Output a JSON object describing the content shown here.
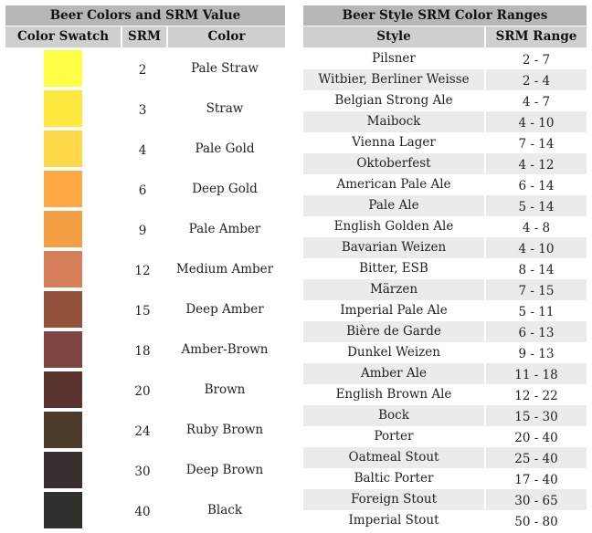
{
  "left": {
    "title": "Beer Colors and SRM Value",
    "headers": {
      "swatch": "Color Swatch",
      "srm": "SRM",
      "color": "Color"
    },
    "rows": [
      {
        "srm": "2",
        "color": "Pale Straw",
        "hex": "#ffff45"
      },
      {
        "srm": "3",
        "color": "Straw",
        "hex": "#ffe93e"
      },
      {
        "srm": "4",
        "color": "Pale Gold",
        "hex": "#fed849"
      },
      {
        "srm": "6",
        "color": "Deep Gold",
        "hex": "#ffa846"
      },
      {
        "srm": "9",
        "color": "Pale Amber",
        "hex": "#f49f44"
      },
      {
        "srm": "12",
        "color": "Medium Amber",
        "hex": "#d77f59"
      },
      {
        "srm": "15",
        "color": "Deep Amber",
        "hex": "#94523a"
      },
      {
        "srm": "18",
        "color": "Amber-Brown",
        "hex": "#804541"
      },
      {
        "srm": "20",
        "color": "Brown",
        "hex": "#5b342f"
      },
      {
        "srm": "24",
        "color": "Ruby Brown",
        "hex": "#4c3b2b"
      },
      {
        "srm": "30",
        "color": "Deep Brown",
        "hex": "#38302e"
      },
      {
        "srm": "40",
        "color": "Black",
        "hex": "#31302c"
      }
    ]
  },
  "right": {
    "title": "Beer Style SRM Color Ranges",
    "headers": {
      "style": "Style",
      "range": "SRM Range"
    },
    "rows": [
      {
        "style": "Pilsner",
        "range": "2 - 7"
      },
      {
        "style": "Witbier, Berliner Weisse",
        "range": "2 - 4"
      },
      {
        "style": "Belgian Strong Ale",
        "range": "4 - 7"
      },
      {
        "style": "Maibock",
        "range": "4 - 10"
      },
      {
        "style": "Vienna Lager",
        "range": "7 - 14"
      },
      {
        "style": "Oktoberfest",
        "range": "4 - 12"
      },
      {
        "style": "American Pale Ale",
        "range": "6 - 14"
      },
      {
        "style": "Pale Ale",
        "range": "5 - 14"
      },
      {
        "style": "English Golden Ale",
        "range": "4 - 8"
      },
      {
        "style": "Bavarian Weizen",
        "range": "4 - 10"
      },
      {
        "style": "Bitter, ESB",
        "range": "8 - 14"
      },
      {
        "style": "Märzen",
        "range": "7 - 15"
      },
      {
        "style": "Imperial Pale Ale",
        "range": "5 - 11"
      },
      {
        "style": "Bière de Garde",
        "range": "6 - 13"
      },
      {
        "style": "Dunkel Weizen",
        "range": "9 - 13"
      },
      {
        "style": "Amber Ale",
        "range": "11 - 18"
      },
      {
        "style": "English Brown Ale",
        "range": "12 - 22"
      },
      {
        "style": "Bock",
        "range": "15 - 30"
      },
      {
        "style": "Porter",
        "range": "20 - 40"
      },
      {
        "style": "Oatmeal Stout",
        "range": "25 - 40"
      },
      {
        "style": "Baltic Porter",
        "range": "17 - 40"
      },
      {
        "style": "Foreign Stout",
        "range": "30 - 65"
      },
      {
        "style": "Imperial Stout",
        "range": "50 - 80"
      }
    ]
  }
}
